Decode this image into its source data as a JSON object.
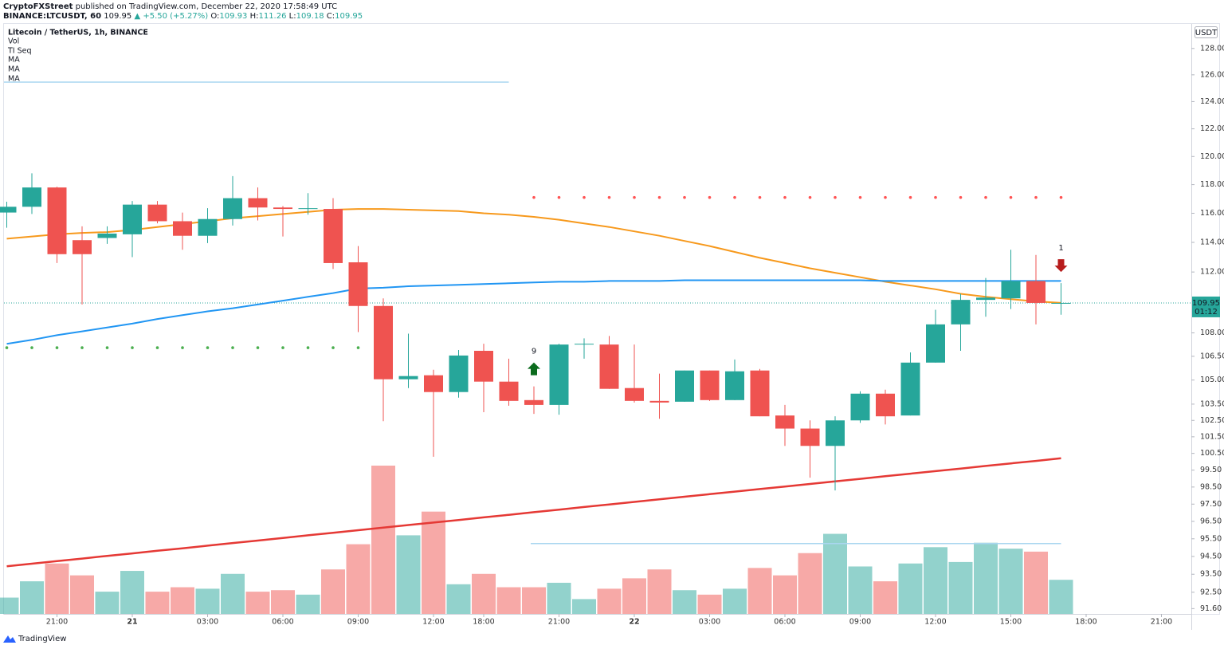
{
  "header": {
    "author": "CryptoFXStreet",
    "published": "published on TradingView.com, December 22, 2020 17:58:49 UTC",
    "symbol": "BINANCE:LTCUSDT, 60",
    "last": "109.95",
    "change": "▲ +5.50 (+5.27%)",
    "ohlc": [
      {
        "key": "O:",
        "value": "109.93"
      },
      {
        "key": "H:",
        "value": "111.26"
      },
      {
        "key": "L:",
        "value": "109.18"
      },
      {
        "key": "C:",
        "value": "109.95"
      }
    ],
    "brand": "TradingView"
  },
  "chart_data": {
    "type": "candlestick",
    "title": "Litecoin / TetherUS, 1h, BINANCE",
    "currency": "USDT",
    "log_scale": true,
    "grid": false,
    "up_color": "#26a69a",
    "down_color": "#ef5350",
    "ylim": [
      91.31,
      129.89
    ],
    "yticks": [
      {
        "value": 128,
        "label": "128.00"
      },
      {
        "value": 126,
        "label": "126.00"
      },
      {
        "value": 124,
        "label": "124.00"
      },
      {
        "value": 122,
        "label": "122.00"
      },
      {
        "value": 120,
        "label": "120.00"
      },
      {
        "value": 118,
        "label": "118.00"
      },
      {
        "value": 116,
        "label": "116.00"
      },
      {
        "value": 114,
        "label": "114.00"
      },
      {
        "value": 112,
        "label": "112.00"
      },
      {
        "value": 108,
        "label": "108.00"
      },
      {
        "value": 106.5,
        "label": "106.50"
      },
      {
        "value": 105,
        "label": "105.00"
      },
      {
        "value": 103.5,
        "label": "103.50"
      },
      {
        "value": 102.5,
        "label": "102.50"
      },
      {
        "value": 101.5,
        "label": "101.50"
      },
      {
        "value": 100.5,
        "label": "100.50"
      },
      {
        "value": 99.5,
        "label": "99.50"
      },
      {
        "value": 98.5,
        "label": "98.50"
      },
      {
        "value": 97.5,
        "label": "97.50"
      },
      {
        "value": 96.5,
        "label": "96.50"
      },
      {
        "value": 95.5,
        "label": "95.50"
      },
      {
        "value": 94.5,
        "label": "94.50"
      },
      {
        "value": 93.5,
        "label": "93.50"
      },
      {
        "value": 92.5,
        "label": "92.50"
      },
      {
        "value": 91.6,
        "label": "91.60"
      }
    ],
    "categories": [
      null,
      null,
      "21:00",
      null,
      null,
      "21",
      null,
      null,
      "03:00",
      null,
      null,
      "06:00",
      null,
      null,
      "09:00",
      null,
      null,
      "12:00",
      null,
      "18:00",
      null,
      null,
      "21:00",
      null,
      null,
      "22",
      null,
      null,
      "03:00",
      null,
      null,
      "06:00",
      null,
      null,
      "09:00",
      null,
      null,
      "12:00",
      null,
      null,
      "15:00",
      null,
      null,
      "18:00",
      null,
      null,
      "21:00"
    ],
    "open": [
      116.05,
      116.45,
      117.8,
      114.15,
      114.3,
      114.55,
      116.6,
      115.45,
      114.45,
      115.6,
      117.05,
      116.4,
      116.3,
      116.3,
      112.65,
      109.75,
      105.05,
      105.3,
      104.25,
      106.85,
      104.9,
      103.75,
      103.45,
      107.25,
      107.25,
      104.5,
      103.7,
      103.65,
      105.6,
      103.75,
      105.6,
      102.8,
      102.0,
      100.95,
      102.5,
      104.15,
      102.8,
      106.1,
      108.55,
      110.15,
      110.25,
      111.4,
      109.93,
      null,
      null,
      null,
      null
    ],
    "high": [
      116.8,
      118.8,
      117.85,
      115.1,
      115.1,
      116.85,
      116.85,
      116.05,
      116.35,
      118.6,
      117.8,
      116.5,
      117.4,
      117.05,
      113.75,
      110.25,
      107.95,
      105.65,
      106.9,
      107.3,
      106.35,
      104.6,
      107.3,
      107.65,
      107.8,
      107.25,
      105.4,
      105.6,
      105.6,
      106.3,
      105.7,
      103.45,
      102.5,
      102.75,
      104.3,
      104.4,
      106.75,
      109.5,
      110.55,
      111.6,
      113.5,
      113.15,
      111.26,
      null,
      null,
      null,
      null
    ],
    "low": [
      115.0,
      115.95,
      112.6,
      109.85,
      113.9,
      113.0,
      115.3,
      113.5,
      113.95,
      115.15,
      115.5,
      114.4,
      115.9,
      112.2,
      108.05,
      102.45,
      104.5,
      100.3,
      103.9,
      103.0,
      103.4,
      102.9,
      102.85,
      106.35,
      104.45,
      103.6,
      102.6,
      103.65,
      103.7,
      103.75,
      102.75,
      100.95,
      99.05,
      98.3,
      102.35,
      102.25,
      102.8,
      106.1,
      106.85,
      109.05,
      109.55,
      108.55,
      109.18,
      null,
      null,
      null,
      null
    ],
    "close": [
      116.45,
      117.8,
      113.2,
      113.2,
      114.6,
      116.6,
      115.45,
      114.45,
      115.6,
      117.05,
      116.4,
      116.3,
      116.35,
      112.6,
      109.75,
      105.05,
      105.25,
      104.25,
      106.55,
      104.9,
      103.7,
      103.45,
      107.25,
      107.3,
      104.45,
      103.7,
      103.6,
      105.6,
      103.75,
      105.55,
      102.75,
      102.0,
      100.95,
      102.5,
      104.15,
      102.75,
      106.1,
      108.55,
      110.15,
      110.3,
      111.4,
      109.95,
      109.95,
      null,
      null,
      null,
      null
    ],
    "volume": {
      "name": "Vol",
      "vlim": [
        0,
        100
      ],
      "values": [
        11,
        22,
        34,
        26,
        15,
        29,
        15,
        18,
        17,
        27,
        15,
        16,
        13,
        30,
        47,
        100,
        53,
        69,
        20,
        27,
        18,
        18,
        21,
        10,
        17,
        24,
        30,
        16,
        13,
        17,
        31,
        26,
        41,
        54,
        32,
        22,
        34,
        45,
        35,
        48,
        44,
        42,
        23,
        null,
        null,
        null,
        null
      ]
    },
    "series": [
      {
        "name": "MA",
        "color": "#f7991c",
        "values": [
          114.25,
          114.4,
          114.55,
          114.65,
          114.7,
          114.85,
          115.05,
          115.25,
          115.45,
          115.65,
          115.8,
          115.95,
          116.1,
          116.25,
          116.3,
          116.3,
          116.25,
          116.2,
          116.15,
          116.0,
          115.9,
          115.75,
          115.55,
          115.3,
          115.05,
          114.75,
          114.45,
          114.1,
          113.75,
          113.35,
          112.95,
          112.6,
          112.25,
          111.95,
          111.65,
          111.35,
          111.1,
          110.85,
          110.55,
          110.35,
          110.2,
          110.05,
          109.95,
          null,
          null,
          null,
          null
        ]
      },
      {
        "name": "MA",
        "color": "#2196f3",
        "values": [
          107.3,
          107.55,
          107.85,
          108.1,
          108.35,
          108.6,
          108.9,
          109.15,
          109.4,
          109.6,
          109.85,
          110.1,
          110.35,
          110.6,
          110.9,
          110.95,
          111.05,
          111.1,
          111.15,
          111.2,
          111.25,
          111.3,
          111.35,
          111.35,
          111.4,
          111.4,
          111.4,
          111.45,
          111.45,
          111.45,
          111.45,
          111.45,
          111.45,
          111.45,
          111.45,
          111.4,
          111.4,
          111.4,
          111.4,
          111.4,
          111.4,
          111.4,
          111.4,
          null,
          null,
          null,
          null
        ]
      },
      {
        "name": "MA",
        "color": "#e53935",
        "values": [
          93.95,
          94.09,
          94.24,
          94.38,
          94.53,
          94.67,
          94.82,
          94.96,
          95.11,
          95.26,
          95.4,
          95.55,
          95.7,
          95.84,
          95.99,
          96.14,
          96.29,
          96.43,
          96.58,
          96.73,
          96.88,
          97.03,
          97.18,
          97.33,
          97.48,
          97.63,
          97.78,
          97.93,
          98.08,
          98.23,
          98.38,
          98.53,
          98.68,
          98.83,
          98.98,
          99.14,
          99.29,
          99.44,
          99.59,
          99.75,
          99.9,
          100.05,
          100.21,
          null,
          null,
          null,
          null
        ]
      }
    ],
    "ti_seq": {
      "name": "TI Seq",
      "support_color": "#4caf50",
      "resistance_color": "#ff5252",
      "support": [
        107.05,
        107.05,
        107.05,
        107.05,
        107.05,
        107.05,
        107.05,
        107.05,
        107.05,
        107.05,
        107.05,
        107.05,
        107.05,
        107.05,
        107.05,
        null,
        null,
        null,
        null,
        null,
        null,
        null,
        null,
        null,
        null,
        null,
        null,
        null,
        null,
        null,
        null,
        null,
        null,
        null,
        null,
        null,
        null,
        null,
        null,
        null,
        null,
        null,
        null,
        null,
        null,
        null,
        null
      ],
      "resistance": [
        null,
        null,
        null,
        null,
        null,
        null,
        null,
        null,
        null,
        null,
        null,
        null,
        null,
        null,
        null,
        null,
        null,
        null,
        null,
        null,
        null,
        117.1,
        117.1,
        117.1,
        117.1,
        117.1,
        117.1,
        117.1,
        117.1,
        117.1,
        117.1,
        117.1,
        117.1,
        117.1,
        117.1,
        117.1,
        117.1,
        117.1,
        117.1,
        117.1,
        117.1,
        117.1,
        117.1,
        null,
        null,
        null,
        null
      ],
      "signals": [
        {
          "index": 21,
          "label": "9",
          "direction": "up"
        },
        {
          "index": 42,
          "label": "1",
          "direction": "down"
        }
      ]
    },
    "drawings": [
      {
        "from": 0,
        "to": 20,
        "value": 125.45,
        "color": "#a9d6f0"
      },
      {
        "from": 21,
        "to": 42,
        "value": 95.23,
        "color": "#a9d6f0"
      }
    ],
    "last_price": 109.95,
    "countdown": "01:12"
  }
}
